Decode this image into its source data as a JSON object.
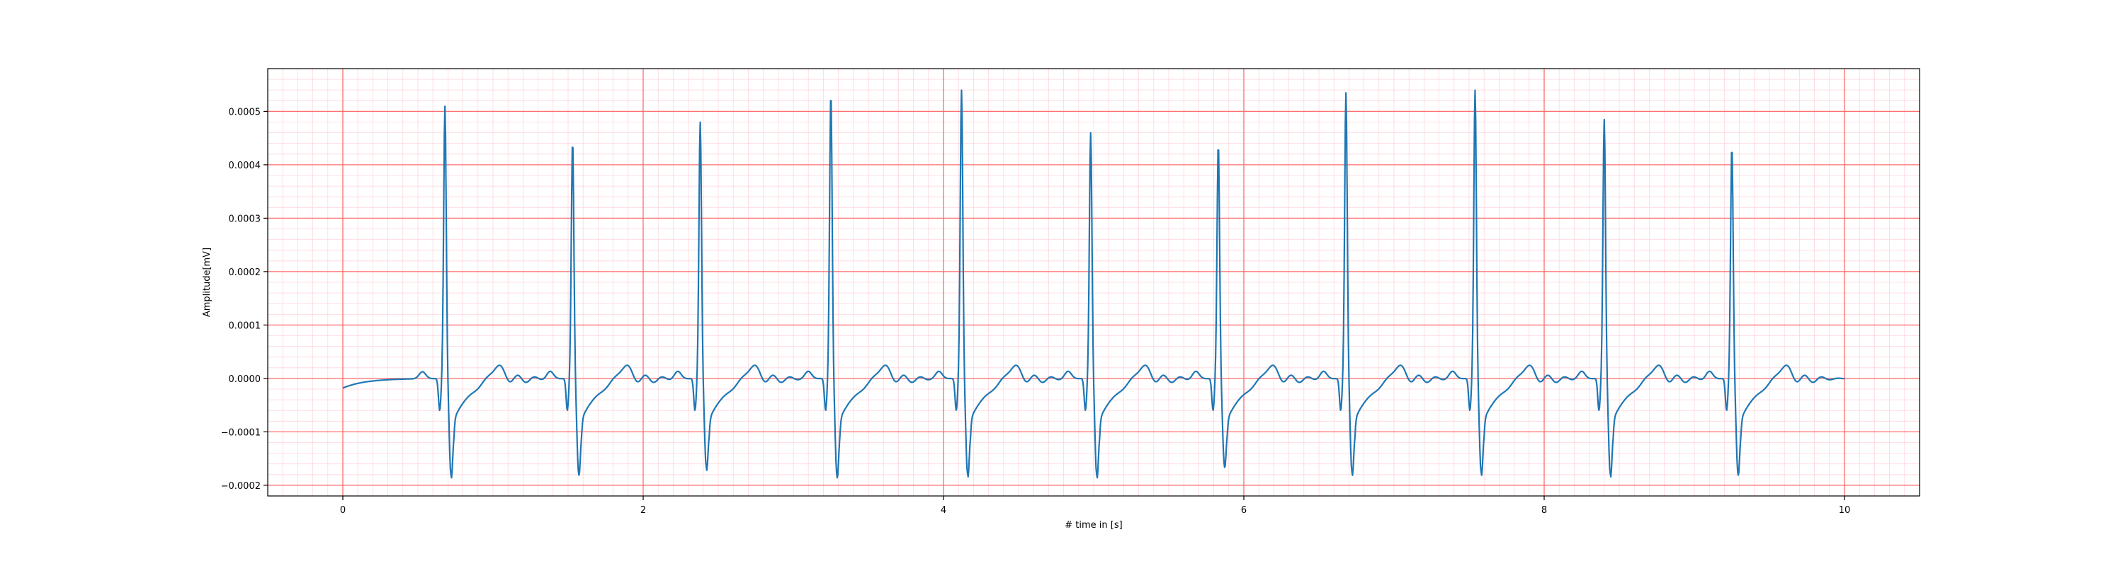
{
  "chart_data": {
    "type": "line",
    "title": "",
    "xlabel": "# time in [s]",
    "ylabel": "Amplitude[mV]",
    "xlim": [
      -0.5,
      10.5
    ],
    "ylim": [
      -0.00022,
      0.00058
    ],
    "x_ticks": [
      0,
      2,
      4,
      6,
      8,
      10
    ],
    "x_tick_labels": [
      "0",
      "2",
      "4",
      "6",
      "8",
      "10"
    ],
    "y_ticks": [
      -0.0002,
      -0.0001,
      0.0,
      0.0001,
      0.0002,
      0.0003,
      0.0004,
      0.0005
    ],
    "y_tick_labels": [
      "−0.0002",
      "−0.0001",
      "0.0000",
      "0.0001",
      "0.0002",
      "0.0003",
      "0.0004",
      "0.0005"
    ],
    "grid": {
      "major": true,
      "minor": true,
      "major_x_step": 2,
      "major_y_step": 0.0001,
      "minor_x_step": 0.1,
      "minor_y_step": 2e-05,
      "major_color": "#ff6b6b",
      "minor_color": "#ffd6dc"
    },
    "line_color": "#1f77b4",
    "sample_rate_hz": 100,
    "x_start": 0,
    "x_end": 10,
    "baseline": 0.0,
    "start_value": -1.8e-05,
    "beats": [
      {
        "t": 0.68,
        "peak": 0.00051,
        "trough": -0.00018
      },
      {
        "t": 1.53,
        "peak": 0.000445,
        "trough": -0.000175
      },
      {
        "t": 2.38,
        "peak": 0.00048,
        "trough": -0.000165
      },
      {
        "t": 3.25,
        "peak": 0.000535,
        "trough": -0.00018
      },
      {
        "t": 4.12,
        "peak": 0.00054,
        "trough": -0.000178
      },
      {
        "t": 4.98,
        "peak": 0.00046,
        "trough": -0.00018
      },
      {
        "t": 5.83,
        "peak": 0.00044,
        "trough": -0.00016
      },
      {
        "t": 6.68,
        "peak": 0.000535,
        "trough": -0.000175
      },
      {
        "t": 7.54,
        "peak": 0.00054,
        "trough": -0.000175
      },
      {
        "t": 8.4,
        "peak": 0.000485,
        "trough": -0.000178
      },
      {
        "t": 9.25,
        "peak": 0.000435,
        "trough": -0.000175
      }
    ]
  }
}
